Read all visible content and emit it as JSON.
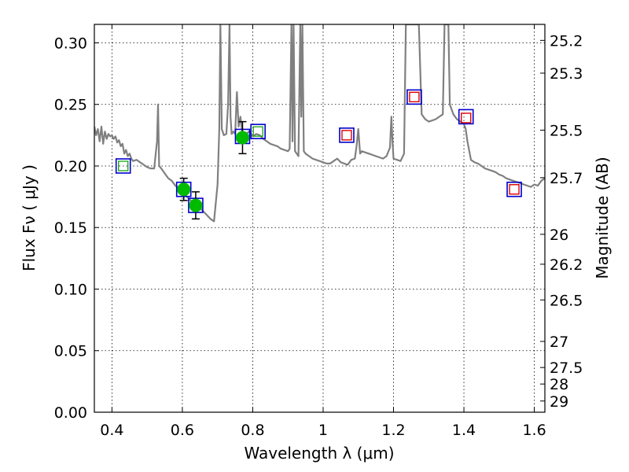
{
  "chart_data": {
    "type": "scatter",
    "xlabel": "Wavelength  λ (μm)",
    "ylabel": "Flux  Fν  ( μJy )",
    "ylabel_right": "Magnitude (AB)",
    "xlim": [
      0.35,
      1.63
    ],
    "ylim": [
      0.0,
      0.315
    ],
    "grid": true,
    "x_ticks": [
      0.4,
      0.6,
      0.8,
      1.0,
      1.2,
      1.4,
      1.6
    ],
    "x_tick_labels": [
      "0.4",
      "0.6",
      "0.8",
      "1",
      "1.2",
      "1.4",
      "1.6"
    ],
    "y_ticks": [
      0.0,
      0.05,
      0.1,
      0.15,
      0.2,
      0.25,
      0.3
    ],
    "y_tick_labels": [
      "0.00",
      "0.05",
      "0.10",
      "0.15",
      "0.20",
      "0.25",
      "0.30"
    ],
    "right_ticks": [
      {
        "flux": 0.302,
        "label": "25.2"
      },
      {
        "flux": 0.2754,
        "label": "25.3"
      },
      {
        "flux": 0.2291,
        "label": "25.5"
      },
      {
        "flux": 0.1905,
        "label": "25.7"
      },
      {
        "flux": 0.1445,
        "label": "26"
      },
      {
        "flux": 0.1202,
        "label": "26.2"
      },
      {
        "flux": 0.0912,
        "label": "26.5"
      },
      {
        "flux": 0.0575,
        "label": "27"
      },
      {
        "flux": 0.0363,
        "label": "27.5"
      },
      {
        "flux": 0.0229,
        "label": "28"
      },
      {
        "flux": 0.0091,
        "label": "29"
      }
    ],
    "series": [
      {
        "kind": "model_spectrum",
        "color": "#808080",
        "x": [
          0.35,
          0.355,
          0.36,
          0.365,
          0.37,
          0.375,
          0.38,
          0.385,
          0.39,
          0.395,
          0.4,
          0.405,
          0.41,
          0.415,
          0.42,
          0.425,
          0.43,
          0.435,
          0.44,
          0.445,
          0.45,
          0.455,
          0.46,
          0.47,
          0.48,
          0.49,
          0.5,
          0.51,
          0.52,
          0.528,
          0.531,
          0.534,
          0.54,
          0.55,
          0.56,
          0.57,
          0.58,
          0.59,
          0.6,
          0.61,
          0.62,
          0.63,
          0.64,
          0.65,
          0.66,
          0.67,
          0.68,
          0.69,
          0.7,
          0.705,
          0.708,
          0.712,
          0.718,
          0.725,
          0.73,
          0.734,
          0.737,
          0.74,
          0.745,
          0.75,
          0.755,
          0.76,
          0.765,
          0.77,
          0.775,
          0.78,
          0.785,
          0.79,
          0.795,
          0.8,
          0.81,
          0.82,
          0.83,
          0.84,
          0.85,
          0.86,
          0.87,
          0.88,
          0.89,
          0.9,
          0.905,
          0.91,
          0.913,
          0.916,
          0.92,
          0.925,
          0.93,
          0.935,
          0.938,
          0.941,
          0.945,
          0.95,
          0.96,
          0.97,
          0.98,
          0.99,
          1.0,
          1.01,
          1.02,
          1.03,
          1.04,
          1.05,
          1.06,
          1.07,
          1.08,
          1.09,
          1.095,
          1.1,
          1.105,
          1.11,
          1.12,
          1.13,
          1.14,
          1.15,
          1.16,
          1.17,
          1.18,
          1.19,
          1.194,
          1.197,
          1.2,
          1.21,
          1.22,
          1.23,
          1.235,
          1.238,
          1.242,
          1.245,
          1.25,
          1.255,
          1.26,
          1.264,
          1.268,
          1.272,
          1.28,
          1.29,
          1.3,
          1.31,
          1.32,
          1.33,
          1.34,
          1.345,
          1.348,
          1.352,
          1.356,
          1.36,
          1.37,
          1.38,
          1.39,
          1.4,
          1.405,
          1.41,
          1.42,
          1.43,
          1.44,
          1.45,
          1.46,
          1.47,
          1.48,
          1.49,
          1.5,
          1.51,
          1.52,
          1.53,
          1.54,
          1.55,
          1.56,
          1.57,
          1.58,
          1.59,
          1.6,
          1.61,
          1.62,
          1.63
        ],
        "y": [
          0.232,
          0.225,
          0.23,
          0.22,
          0.232,
          0.218,
          0.228,
          0.222,
          0.226,
          0.224,
          0.225,
          0.222,
          0.224,
          0.219,
          0.221,
          0.216,
          0.218,
          0.21,
          0.213,
          0.208,
          0.21,
          0.206,
          0.204,
          0.205,
          0.203,
          0.201,
          0.199,
          0.198,
          0.198,
          0.22,
          0.25,
          0.2,
          0.198,
          0.194,
          0.19,
          0.188,
          0.184,
          0.182,
          0.18,
          0.176,
          0.173,
          0.17,
          0.168,
          0.166,
          0.163,
          0.16,
          0.157,
          0.155,
          0.185,
          0.23,
          0.315,
          0.23,
          0.225,
          0.226,
          0.25,
          0.315,
          0.24,
          0.226,
          0.228,
          0.226,
          0.26,
          0.232,
          0.24,
          0.228,
          0.226,
          0.226,
          0.227,
          0.228,
          0.226,
          0.224,
          0.226,
          0.225,
          0.222,
          0.22,
          0.218,
          0.217,
          0.216,
          0.214,
          0.213,
          0.212,
          0.214,
          0.315,
          0.22,
          0.315,
          0.212,
          0.21,
          0.208,
          0.315,
          0.24,
          0.315,
          0.212,
          0.21,
          0.208,
          0.206,
          0.205,
          0.204,
          0.203,
          0.202,
          0.202,
          0.204,
          0.206,
          0.203,
          0.202,
          0.201,
          0.205,
          0.206,
          0.216,
          0.23,
          0.21,
          0.212,
          0.211,
          0.21,
          0.209,
          0.208,
          0.207,
          0.206,
          0.208,
          0.215,
          0.24,
          0.22,
          0.206,
          0.205,
          0.204,
          0.21,
          0.315,
          0.315,
          0.315,
          0.315,
          0.315,
          0.315,
          0.315,
          0.315,
          0.315,
          0.315,
          0.242,
          0.238,
          0.236,
          0.237,
          0.238,
          0.24,
          0.242,
          0.315,
          0.315,
          0.315,
          0.315,
          0.25,
          0.242,
          0.238,
          0.236,
          0.234,
          0.23,
          0.22,
          0.205,
          0.203,
          0.202,
          0.2,
          0.198,
          0.197,
          0.196,
          0.195,
          0.193,
          0.192,
          0.19,
          0.189,
          0.188,
          0.187,
          0.186,
          0.185,
          0.184,
          0.183,
          0.185,
          0.184,
          0.188,
          0.19
        ]
      },
      {
        "kind": "model_photometry",
        "marker": "open-square",
        "color": "#0000cc",
        "x": [
          0.432,
          0.604,
          0.638,
          0.771,
          0.815,
          1.067,
          1.259,
          1.406,
          1.543
        ],
        "y": [
          0.2,
          0.181,
          0.168,
          0.224,
          0.228,
          0.225,
          0.256,
          0.24,
          0.181
        ]
      },
      {
        "kind": "observed_photometry",
        "marker": "filled-circle",
        "color": "#00bb00",
        "x": [
          0.604,
          0.638,
          0.771
        ],
        "y": [
          0.181,
          0.168,
          0.223
        ],
        "yerr": [
          0.009,
          0.011,
          0.013
        ]
      },
      {
        "kind": "observed_photometry",
        "marker": "small-open-square",
        "color": "#22aa22",
        "x": [
          0.432,
          0.815
        ],
        "y": [
          0.2,
          0.228
        ]
      },
      {
        "kind": "observed_photometry",
        "marker": "small-open-square",
        "color": "#dd0000",
        "x": [
          1.067,
          1.259,
          1.406,
          1.543
        ],
        "y": [
          0.225,
          0.256,
          0.239,
          0.181
        ]
      }
    ]
  }
}
